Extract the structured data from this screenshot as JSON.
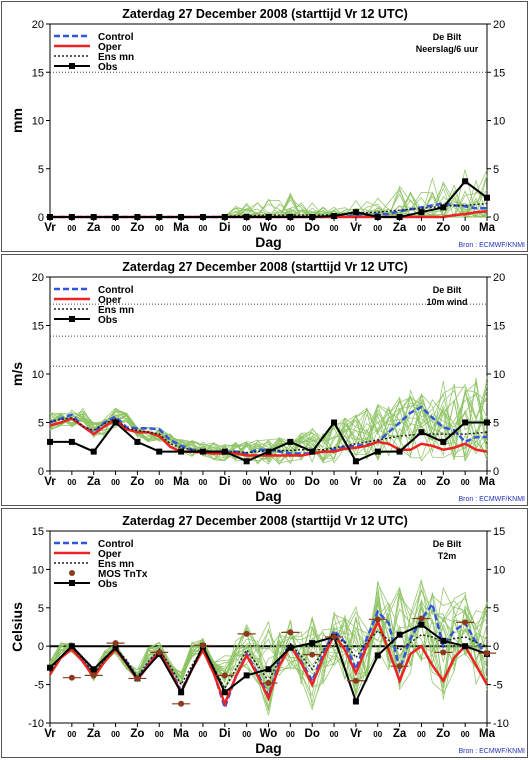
{
  "x_ticks": [
    "Vr",
    "00",
    "Za",
    "00",
    "Zo",
    "00",
    "Ma",
    "00",
    "Di",
    "00",
    "Wo",
    "00",
    "Do",
    "00",
    "Vr",
    "00",
    "Za",
    "00",
    "Zo",
    "00",
    "Ma"
  ],
  "xlabel": "Dag",
  "source": "Bron : ECMWF/KNMI",
  "colors": {
    "ensemble": "#8dc363",
    "control": "#3355dd",
    "oper": "#ee2222",
    "ensmean": "#222222",
    "obs": "#000000",
    "mos": "#8b3a1e"
  },
  "chart_data": [
    {
      "type": "line",
      "title": "Zaterdag  27 December  2008  (starttijd  Vr 12 UTC)",
      "station": "De Bilt",
      "variable": "Neerslag/6 uur",
      "ylabel": "mm",
      "ylim": [
        0,
        20
      ],
      "yticks": [
        0,
        5,
        10,
        15,
        20
      ],
      "reflines": [
        15
      ],
      "legend": [
        "Control",
        "Oper",
        "Ens mn",
        "Obs"
      ],
      "ens_range": [
        [
          0,
          0,
          0,
          0,
          0,
          0,
          0,
          0,
          0,
          0,
          0,
          0,
          0,
          0,
          0,
          0,
          0,
          0,
          0,
          0,
          0,
          0,
          0,
          0,
          0,
          0,
          0,
          0,
          0,
          0,
          0,
          0,
          0,
          0,
          0,
          0,
          0,
          0,
          0,
          0,
          0
        ],
        [
          0,
          0,
          0,
          0,
          0,
          0,
          0,
          0,
          0,
          0,
          0,
          0,
          0,
          0,
          0,
          0,
          0.5,
          1.2,
          2.8,
          1.8,
          3,
          2.2,
          3,
          2.4,
          2,
          1.5,
          1.5,
          1.2,
          2.2,
          1.8,
          2.5,
          3,
          4,
          3.5,
          5.5,
          4.5,
          6,
          5,
          7,
          5.5,
          6.5
        ]
      ],
      "ens_members": 20,
      "series": [
        {
          "name": "Control",
          "y": [
            0,
            0,
            0,
            0,
            0,
            0,
            0,
            0,
            0,
            0,
            0,
            0,
            0,
            0,
            0,
            0,
            0,
            0,
            0,
            0,
            0,
            0,
            0,
            0,
            0,
            0,
            0.1,
            0,
            0.2,
            0.2,
            0.3,
            0.3,
            0.6,
            0.8,
            1,
            1.2,
            1.4,
            1.2,
            1.1,
            0.9,
            0.9
          ]
        },
        {
          "name": "Oper",
          "y": [
            0,
            0,
            0,
            0,
            0,
            0,
            0,
            0,
            0,
            0,
            0,
            0,
            0,
            0,
            0,
            0,
            0,
            0,
            0,
            0,
            0,
            0,
            0,
            0,
            0,
            0,
            0,
            0,
            0,
            0,
            0,
            0,
            0,
            0,
            0,
            0,
            0,
            0.2,
            0.3,
            0.5,
            0.6
          ]
        },
        {
          "name": "Ens mn",
          "y": [
            0,
            0,
            0,
            0,
            0,
            0,
            0,
            0,
            0,
            0,
            0,
            0,
            0,
            0,
            0,
            0,
            0.05,
            0.1,
            0.15,
            0.15,
            0.2,
            0.2,
            0.2,
            0.2,
            0.2,
            0.2,
            0.25,
            0.3,
            0.4,
            0.45,
            0.5,
            0.6,
            0.7,
            0.8,
            0.9,
            1,
            1.1,
            1.2,
            1.2,
            1.3,
            1.4
          ]
        },
        {
          "name": "Obs",
          "x": [
            0,
            2,
            4,
            6,
            8,
            10,
            12,
            14,
            16,
            18,
            20,
            22,
            24,
            26,
            28,
            30,
            32,
            34,
            36,
            38,
            40
          ],
          "y": [
            0,
            0,
            0,
            0,
            0,
            0,
            0,
            0,
            0,
            0,
            0,
            0,
            0,
            0.1,
            0.5,
            0,
            0,
            0.5,
            1,
            3.7,
            2
          ]
        }
      ]
    },
    {
      "type": "line",
      "title": "Zaterdag  27 December  2008  (starttijd  Vr 12 UTC)",
      "station": "De Bilt",
      "variable": "10m wind",
      "ylabel": "m/s",
      "ylim": [
        0,
        20
      ],
      "yticks": [
        0,
        5,
        10,
        15,
        20
      ],
      "reflines": [
        10.8,
        13.9,
        17.2
      ],
      "legend": [
        "Control",
        "Oper",
        "Ens mn",
        "Obs"
      ],
      "ens_range": [
        [
          4,
          4.5,
          4.5,
          5,
          3.3,
          3.5,
          4.5,
          5,
          3.5,
          3,
          3,
          2.5,
          2,
          1.5,
          1.5,
          1,
          1,
          1,
          0.8,
          0.7,
          0.5,
          0.7,
          0.7,
          0.8,
          0.8,
          0.8,
          0.8,
          1,
          1,
          1,
          1,
          1,
          1,
          1,
          1,
          1.2,
          1,
          1,
          1,
          1,
          1
        ],
        [
          6,
          6,
          6.3,
          6.5,
          5,
          5.5,
          6.5,
          6,
          4.5,
          4.5,
          4.5,
          4,
          3.5,
          3.2,
          3,
          3,
          2.8,
          3,
          3.2,
          3.3,
          3.5,
          3.5,
          3.5,
          4,
          4.5,
          4,
          5,
          5.5,
          6,
          6.5,
          7,
          7.5,
          8,
          8.5,
          8,
          9,
          9.5,
          9,
          9.5,
          10,
          10.5
        ]
      ],
      "ens_members": 20,
      "series": [
        {
          "name": "Control",
          "y": [
            5,
            5.4,
            5.8,
            4.6,
            4,
            5,
            5.6,
            4.5,
            4.4,
            4.4,
            4.3,
            3.2,
            2.6,
            2.2,
            2,
            2,
            2,
            2,
            1.8,
            2.2,
            2.2,
            2,
            1.8,
            1.8,
            1.8,
            2,
            2.2,
            2.5,
            2.6,
            2.7,
            3,
            4,
            5,
            6,
            6.6,
            5.5,
            4.5,
            4.2,
            3,
            3.5,
            3.5
          ]
        },
        {
          "name": "Oper",
          "y": [
            4.7,
            5,
            5.4,
            4.6,
            3.8,
            4.6,
            5.3,
            4.3,
            4,
            4,
            3.6,
            2.5,
            2,
            2,
            1.9,
            1.8,
            1.8,
            1.8,
            1.6,
            1.6,
            1.6,
            1.6,
            1.6,
            1.6,
            1.8,
            2,
            2,
            2.3,
            2.4,
            2.6,
            3,
            2.8,
            2.2,
            2.2,
            2.8,
            2.6,
            2.2,
            2.4,
            2.8,
            2.2,
            2
          ]
        },
        {
          "name": "Ens mn",
          "y": [
            5.1,
            5.3,
            5.5,
            4.6,
            4.2,
            4.9,
            5.4,
            4.4,
            4.2,
            4,
            3.8,
            2.8,
            2.4,
            2.2,
            2.1,
            2,
            2,
            2,
            1.9,
            2,
            2.1,
            2.1,
            2.1,
            2.2,
            2.2,
            2.2,
            2.4,
            2.6,
            2.8,
            3,
            3.2,
            3.4,
            3.6,
            3.7,
            3.8,
            3.8,
            3.8,
            3.8,
            3.8,
            3.9,
            4
          ]
        },
        {
          "name": "Obs",
          "x": [
            0,
            2,
            4,
            6,
            8,
            10,
            12,
            14,
            16,
            18,
            20,
            22,
            24,
            26,
            28,
            30,
            32,
            34,
            36,
            38,
            40
          ],
          "y": [
            3,
            3,
            2,
            5,
            3,
            2,
            2,
            2,
            2,
            1,
            2,
            3,
            2,
            5,
            1,
            2,
            2,
            4,
            3,
            5,
            5
          ]
        }
      ]
    },
    {
      "type": "line",
      "title": "Zaterdag  27 December  2008  (starttijd  Vr 12 UTC)",
      "station": "De Bilt",
      "variable": "T2m",
      "ylabel": "Celsius",
      "ylim": [
        -10,
        15
      ],
      "yticks": [
        -10,
        -5,
        0,
        5,
        10,
        15
      ],
      "reflines": [
        0
      ],
      "legend": [
        "Control",
        "Oper",
        "Ens mn",
        "MOS TnTx",
        "Obs"
      ],
      "ens_range": [
        [
          -3.5,
          -1,
          -0.8,
          -2,
          -4.5,
          -2.5,
          -1,
          -3,
          -4.5,
          -2,
          -1.5,
          -3,
          -5,
          -1.5,
          -1,
          -3,
          -6,
          -4,
          -3,
          -5,
          -9,
          -4,
          -3,
          -5,
          -9,
          -5,
          -3,
          -5,
          -7,
          -5,
          -2,
          -5,
          -6,
          -4,
          -2,
          -5,
          -7,
          -4,
          -2,
          -5,
          -7
        ],
        [
          -2,
          0.5,
          0.5,
          -2,
          -3,
          -0.5,
          0.5,
          -2,
          -3,
          0,
          0.5,
          -2,
          -3,
          0.5,
          1,
          -2,
          -1,
          1,
          3,
          1,
          4,
          2,
          4,
          2,
          5,
          3,
          5,
          4,
          7,
          5,
          9,
          6,
          8,
          6,
          9,
          7,
          8,
          7,
          8,
          6,
          7
        ]
      ],
      "ens_members": 20,
      "series": [
        {
          "name": "Control",
          "y": [
            -3.4,
            -1.5,
            -0.3,
            -1.8,
            -3.8,
            -2,
            -0.3,
            -2,
            -4.2,
            -2.3,
            -0.5,
            -3,
            -5.8,
            -3,
            -0.3,
            -3.5,
            -8,
            -4,
            -1,
            -3.5,
            -6.5,
            -2,
            0.3,
            -2,
            -4.5,
            -1,
            2,
            0.5,
            -3,
            1,
            4.5,
            3,
            -3,
            1,
            3.5,
            5.5,
            0,
            2,
            3,
            0.5,
            -1
          ]
        },
        {
          "name": "Oper",
          "y": [
            -3.7,
            -1.5,
            -0.4,
            -2,
            -4,
            -2,
            -0.4,
            -2.2,
            -4.4,
            -2.5,
            -0.6,
            -3.2,
            -6,
            -3,
            -0.5,
            -3.6,
            -7.5,
            -4,
            -1.2,
            -3.8,
            -6.8,
            -2.5,
            0,
            -2.2,
            -5,
            -1.5,
            1.5,
            -0.5,
            -3.5,
            0,
            3.2,
            -0.5,
            -4.5,
            -1,
            0,
            -2.5,
            -4.5,
            -1.5,
            0,
            -2.5,
            -5
          ]
        },
        {
          "name": "Ens mn",
          "y": [
            -3.3,
            -1.3,
            -0.2,
            -1.6,
            -3.6,
            -1.8,
            -0.2,
            -1.8,
            -4,
            -2,
            -0.4,
            -2.6,
            -5,
            -2.5,
            -0.2,
            -2.8,
            -5.5,
            -3,
            -0.5,
            -2.5,
            -4.5,
            -1.8,
            0.3,
            -1.3,
            -3,
            -0.5,
            1.2,
            0.5,
            -1.5,
            0.5,
            2,
            0.8,
            -0.5,
            0.5,
            1.5,
            1.2,
            0.5,
            1,
            1.2,
            0.5,
            0
          ]
        },
        {
          "name": "Obs",
          "x": [
            0,
            2,
            4,
            6,
            8,
            10,
            12,
            14,
            16,
            18,
            20,
            22,
            24,
            26,
            28,
            30,
            32,
            34,
            36,
            38,
            40
          ],
          "y": [
            -2.8,
            0,
            -3,
            -0.2,
            -4.2,
            -1,
            -6,
            0,
            -6,
            -3.8,
            -3,
            -0.2,
            0.4,
            1.2,
            -7.2,
            -1.2,
            1.5,
            2.8,
            0.7,
            0,
            -1
          ]
        },
        {
          "name": "MOS TnTx",
          "x": [
            2,
            4,
            6,
            8,
            10,
            12,
            14,
            16,
            18,
            20,
            22,
            24,
            26,
            28,
            30,
            32,
            34,
            36,
            38,
            40
          ],
          "y": [
            -4.1,
            -3.8,
            0.4,
            -4.2,
            -0.8,
            -7.5,
            0.1,
            -3.8,
            1.6,
            -4.8,
            1.8,
            -1.1,
            1.2,
            -4.5,
            3.5,
            -2.6,
            3.6,
            -0.8,
            3.1,
            -0.9
          ]
        }
      ]
    }
  ]
}
